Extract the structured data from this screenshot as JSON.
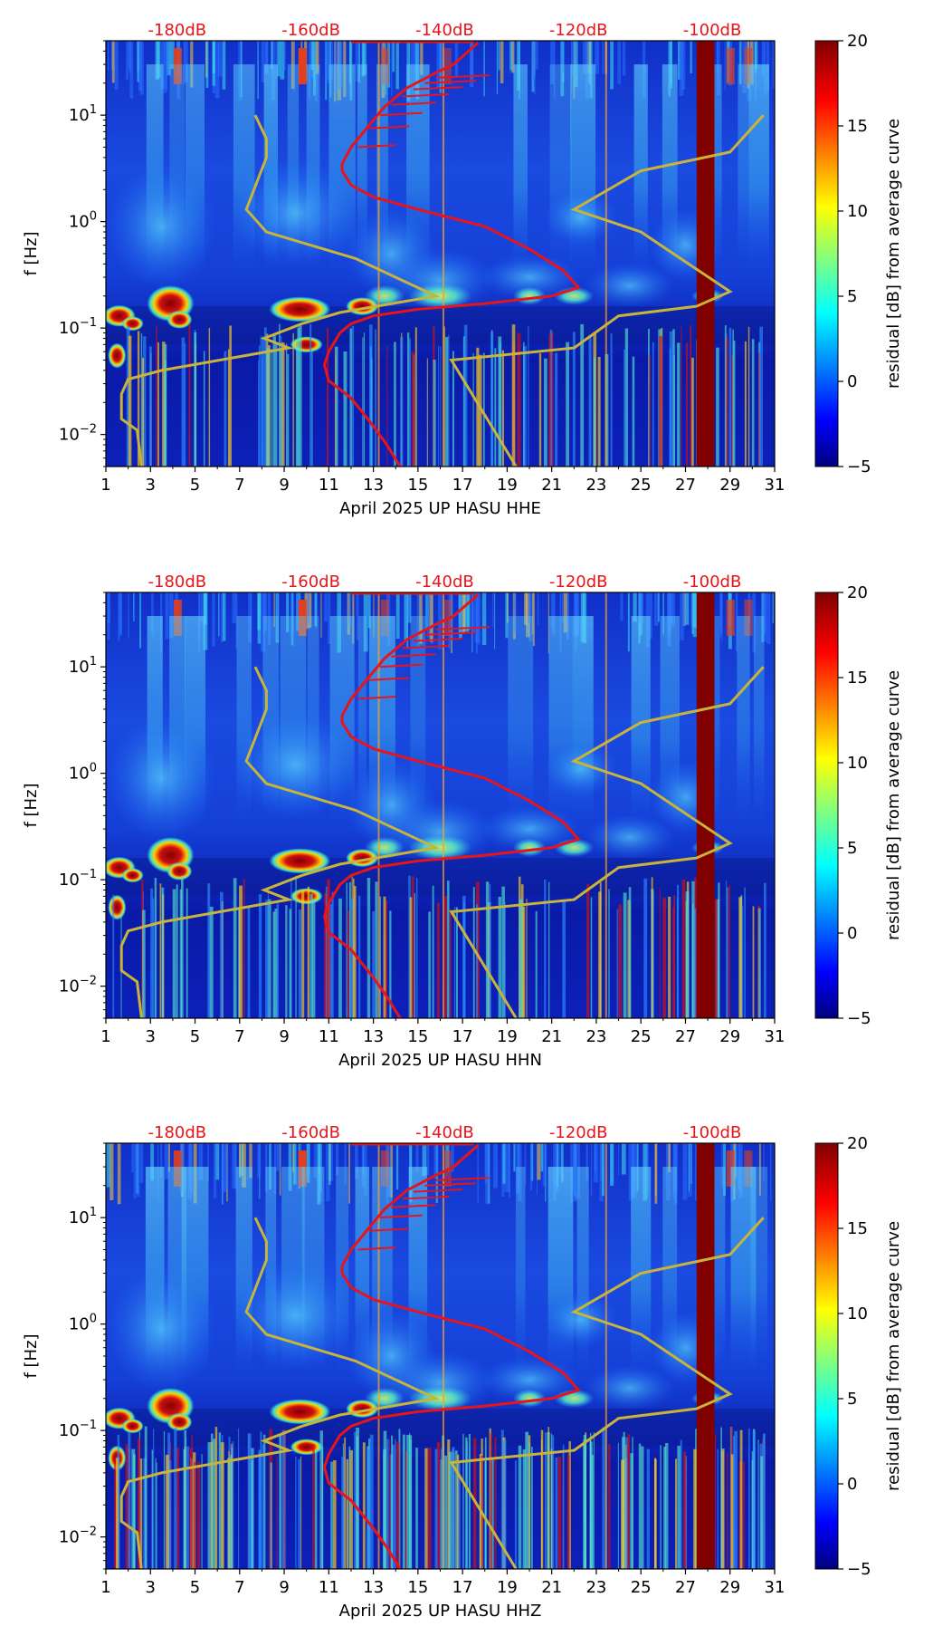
{
  "chart_data": [
    {
      "type": "heatmap",
      "title": "",
      "xlabel": "April 2025 UP HASU  HHE",
      "ylabel": "f [Hz]",
      "x_ticks": [
        "1",
        "3",
        "5",
        "7",
        "9",
        "11",
        "13",
        "15",
        "17",
        "19",
        "21",
        "23",
        "25",
        "27",
        "29",
        "31"
      ],
      "xlim": [
        1,
        31
      ],
      "ylim": [
        0.005,
        50
      ],
      "y_ticks": [
        {
          "base": "10",
          "exp": "1"
        },
        {
          "base": "10",
          "exp": "0"
        },
        {
          "base": "10",
          "exp": "−1"
        },
        {
          "base": "10",
          "exp": "−2"
        }
      ],
      "ref_labels": [
        "-180dB",
        "-160dB",
        "-140dB",
        "-120dB",
        "-100dB"
      ],
      "colorbar": {
        "label": "residual [dB] from average curve",
        "min": -5,
        "max": 20,
        "ticks": [
          "20",
          "15",
          "10",
          "5",
          "0",
          "−5"
        ]
      }
    },
    {
      "type": "heatmap",
      "title": "",
      "xlabel": "April 2025 UP HASU  HHN",
      "ylabel": "f [Hz]",
      "x_ticks": [
        "1",
        "3",
        "5",
        "7",
        "9",
        "11",
        "13",
        "15",
        "17",
        "19",
        "21",
        "23",
        "25",
        "27",
        "29",
        "31"
      ],
      "xlim": [
        1,
        31
      ],
      "ylim": [
        0.005,
        50
      ],
      "y_ticks": [
        {
          "base": "10",
          "exp": "1"
        },
        {
          "base": "10",
          "exp": "0"
        },
        {
          "base": "10",
          "exp": "−1"
        },
        {
          "base": "10",
          "exp": "−2"
        }
      ],
      "ref_labels": [
        "-180dB",
        "-160dB",
        "-140dB",
        "-120dB",
        "-100dB"
      ],
      "colorbar": {
        "label": "residual [dB] from average curve",
        "min": -5,
        "max": 20,
        "ticks": [
          "20",
          "15",
          "10",
          "5",
          "0",
          "−5"
        ]
      }
    },
    {
      "type": "heatmap",
      "title": "",
      "xlabel": "April 2025 UP HASU  HHZ",
      "ylabel": "f [Hz]",
      "x_ticks": [
        "1",
        "3",
        "5",
        "7",
        "9",
        "11",
        "13",
        "15",
        "17",
        "19",
        "21",
        "23",
        "25",
        "27",
        "29",
        "31"
      ],
      "xlim": [
        1,
        31
      ],
      "ylim": [
        0.005,
        50
      ],
      "y_ticks": [
        {
          "base": "10",
          "exp": "1"
        },
        {
          "base": "10",
          "exp": "0"
        },
        {
          "base": "10",
          "exp": "−1"
        },
        {
          "base": "10",
          "exp": "−2"
        }
      ],
      "ref_labels": [
        "-180dB",
        "-160dB",
        "-140dB",
        "-120dB",
        "-100dB"
      ],
      "colorbar": {
        "label": "residual [dB] from average curve",
        "min": -5,
        "max": 20,
        "ticks": [
          "20",
          "15",
          "10",
          "5",
          "0",
          "−5"
        ]
      }
    }
  ],
  "colors": {
    "noise_model": "#c8b43a",
    "average_curve": "#e8141a",
    "ref_text": "#e8141a",
    "background": "#0a1ad0",
    "saturated": "#800000"
  }
}
